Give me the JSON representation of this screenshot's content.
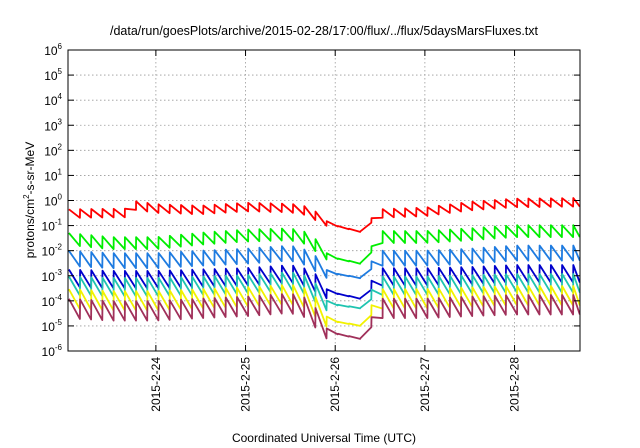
{
  "chart_data": {
    "type": "line",
    "title": "/data/run/goesPlots/archive/2015-02-28/17:00/flux/../flux/5daysMarsFluxes.txt",
    "xlabel": "Coordinated Universal Time (UTC)",
    "ylabel": {
      "base": "protons/cm",
      "sup": "2",
      "rest": "-s-sr-MeV"
    },
    "y_scale": "log",
    "ylim": [
      1e-06,
      1000000.0
    ],
    "y_ticks": [
      {
        "base": "10",
        "exp": "-6",
        "value": -6
      },
      {
        "base": "10",
        "exp": "-5",
        "value": -5
      },
      {
        "base": "10",
        "exp": "-4",
        "value": -4
      },
      {
        "base": "10",
        "exp": "-3",
        "value": -3
      },
      {
        "base": "10",
        "exp": "-2",
        "value": -2
      },
      {
        "base": "10",
        "exp": "-1",
        "value": -1
      },
      {
        "base": "10",
        "exp": "0",
        "value": 0
      },
      {
        "base": "10",
        "exp": "1",
        "value": 1
      },
      {
        "base": "10",
        "exp": "2",
        "value": 2
      },
      {
        "base": "10",
        "exp": "3",
        "value": 3
      },
      {
        "base": "10",
        "exp": "4",
        "value": 4
      },
      {
        "base": "10",
        "exp": "5",
        "value": 5
      },
      {
        "base": "10",
        "exp": "6",
        "value": 6
      }
    ],
    "x_ticks": [
      {
        "label": "2015-2-24",
        "day": 24
      },
      {
        "label": "2015-2-25",
        "day": 25
      },
      {
        "label": "2015-2-26",
        "day": 26
      },
      {
        "label": "2015-2-27",
        "day": 27
      },
      {
        "label": "2015-2-28",
        "day": 28
      }
    ],
    "xlim_day": [
      23.02,
      28.73
    ],
    "grid": true,
    "legend": "none",
    "sawtooth": {
      "period_day": 0.125,
      "start_day": 23.03
    },
    "series": [
      {
        "color": "#ff0000",
        "base": [
          [
            23.0,
            0.3
          ],
          [
            23.7,
            0.32
          ],
          [
            23.75,
            0.65
          ],
          [
            24.0,
            0.48
          ],
          [
            24.5,
            0.42
          ],
          [
            25.0,
            0.55
          ],
          [
            25.5,
            0.5
          ],
          [
            25.7,
            0.38
          ],
          [
            25.8,
            0.22
          ],
          [
            26.0,
            0.1
          ],
          [
            26.3,
            0.055
          ],
          [
            26.38,
            0.085
          ],
          [
            26.45,
            0.3
          ],
          [
            27.0,
            0.35
          ],
          [
            27.5,
            0.6
          ],
          [
            28.0,
            0.8
          ],
          [
            28.73,
            0.85
          ]
        ],
        "amp": 2.2,
        "dips": [
          [
            25.9,
            26.36
          ]
        ],
        "jumps": [
          23.73
        ]
      },
      {
        "color": "#00ee00",
        "base": [
          [
            23.0,
            0.03
          ],
          [
            23.5,
            0.02
          ],
          [
            24.0,
            0.02
          ],
          [
            24.5,
            0.03
          ],
          [
            25.0,
            0.04
          ],
          [
            25.5,
            0.045
          ],
          [
            25.7,
            0.03
          ],
          [
            25.85,
            0.01
          ],
          [
            26.0,
            0.005
          ],
          [
            26.3,
            0.003
          ],
          [
            26.38,
            0.004
          ],
          [
            26.45,
            0.035
          ],
          [
            27.0,
            0.035
          ],
          [
            27.5,
            0.045
          ],
          [
            28.0,
            0.06
          ],
          [
            28.73,
            0.06
          ]
        ],
        "amp": 3.0,
        "dips": [
          [
            25.9,
            26.36
          ]
        ],
        "jumps": []
      },
      {
        "color": "#1e7be0",
        "base": [
          [
            23.0,
            0.005
          ],
          [
            23.5,
            0.004
          ],
          [
            24.0,
            0.004
          ],
          [
            24.5,
            0.005
          ],
          [
            25.0,
            0.006
          ],
          [
            25.5,
            0.008
          ],
          [
            25.7,
            0.005
          ],
          [
            25.85,
            0.002
          ],
          [
            26.0,
            0.0012
          ],
          [
            26.3,
            0.0008
          ],
          [
            26.38,
            0.0011
          ],
          [
            26.45,
            0.005
          ],
          [
            27.0,
            0.005
          ],
          [
            27.5,
            0.006
          ],
          [
            28.0,
            0.008
          ],
          [
            28.73,
            0.008
          ]
        ],
        "amp": 4.0,
        "dips": [
          [
            25.9,
            26.36
          ]
        ],
        "jumps": []
      },
      {
        "color": "#0000cc",
        "base": [
          [
            23.0,
            0.0008
          ],
          [
            23.5,
            0.0007
          ],
          [
            24.0,
            0.0007
          ],
          [
            24.5,
            0.0008
          ],
          [
            25.0,
            0.0009
          ],
          [
            25.5,
            0.0012
          ],
          [
            25.7,
            0.0008
          ],
          [
            25.85,
            0.00035
          ],
          [
            26.0,
            0.0002
          ],
          [
            26.3,
            0.00012
          ],
          [
            26.38,
            0.00015
          ],
          [
            26.45,
            0.0009
          ],
          [
            27.0,
            0.0009
          ],
          [
            27.5,
            0.001
          ],
          [
            28.0,
            0.0012
          ],
          [
            28.73,
            0.0012
          ]
        ],
        "amp": 5.0,
        "dips": [
          [
            25.9,
            26.36
          ]
        ],
        "jumps": []
      },
      {
        "color": "#1fc4b0",
        "base": [
          [
            23.0,
            0.0004
          ],
          [
            23.5,
            0.00035
          ],
          [
            24.0,
            0.00035
          ],
          [
            24.5,
            0.0004
          ],
          [
            25.0,
            0.00045
          ],
          [
            25.5,
            0.0006
          ],
          [
            25.7,
            0.0004
          ],
          [
            25.85,
            0.00012
          ],
          [
            26.0,
            7e-05
          ],
          [
            26.3,
            5e-05
          ],
          [
            26.38,
            6e-05
          ],
          [
            26.45,
            0.0004
          ],
          [
            27.0,
            0.0004
          ],
          [
            27.5,
            0.00045
          ],
          [
            28.0,
            0.0005
          ],
          [
            28.73,
            0.0005
          ]
        ],
        "amp": 5.5,
        "dips": [
          [
            25.9,
            26.36
          ]
        ],
        "jumps": []
      },
      {
        "color": "#f2f200",
        "base": [
          [
            23.0,
            0.00012
          ],
          [
            23.5,
            0.0001
          ],
          [
            24.0,
            0.0001
          ],
          [
            24.5,
            0.00012
          ],
          [
            25.0,
            0.00014
          ],
          [
            25.5,
            0.00018
          ],
          [
            25.7,
            0.00012
          ],
          [
            25.85,
            3e-05
          ],
          [
            26.0,
            1.5e-05
          ],
          [
            26.3,
            1e-05
          ],
          [
            26.38,
            1.2e-05
          ],
          [
            26.45,
            0.00012
          ],
          [
            27.0,
            0.00012
          ],
          [
            27.5,
            0.00014
          ],
          [
            28.0,
            0.00016
          ],
          [
            28.73,
            0.00016
          ]
        ],
        "amp": 6.0,
        "dips": [
          [
            25.9,
            26.36
          ]
        ],
        "jumps": []
      },
      {
        "color": "#a0305a",
        "base": [
          [
            23.0,
            5e-05
          ],
          [
            23.5,
            4e-05
          ],
          [
            24.0,
            4e-05
          ],
          [
            24.5,
            5e-05
          ],
          [
            25.0,
            6e-05
          ],
          [
            25.5,
            8e-05
          ],
          [
            25.7,
            5e-05
          ],
          [
            25.85,
            1e-05
          ],
          [
            26.0,
            5e-06
          ],
          [
            26.3,
            3e-06
          ],
          [
            26.38,
            3.5e-06
          ],
          [
            26.45,
            5e-05
          ],
          [
            27.0,
            5e-05
          ],
          [
            27.5,
            6e-05
          ],
          [
            28.0,
            7e-05
          ],
          [
            28.73,
            7e-05
          ]
        ],
        "amp": 6.0,
        "dips": [
          [
            25.9,
            26.36
          ]
        ],
        "jumps": []
      }
    ]
  }
}
